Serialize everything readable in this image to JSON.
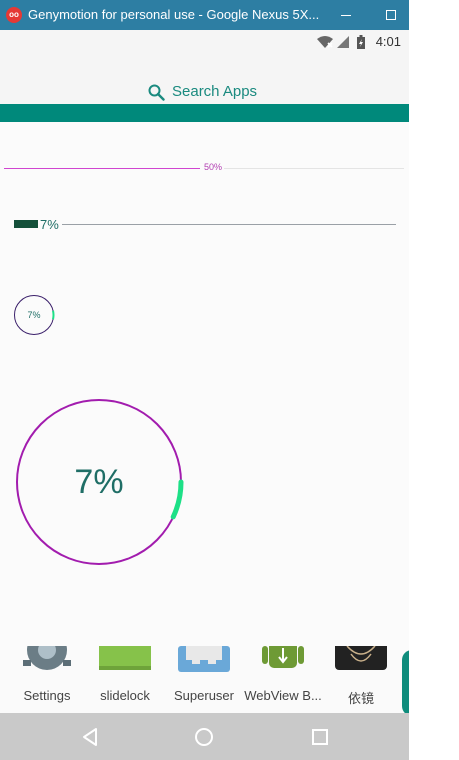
{
  "window": {
    "title": "Genymotion for personal use - Google Nexus 5X...",
    "app_icon_text": "oo"
  },
  "status_bar": {
    "time": "4:01"
  },
  "search": {
    "label": "Search Apps"
  },
  "progress": {
    "top_bar_label": "50%",
    "top_bar_value": 50,
    "bar_label": "7%",
    "bar_value": 7,
    "small_ring_label": "7%",
    "big_ring_label": "7%",
    "ring_value": 7
  },
  "dock": {
    "apps": [
      {
        "label": "Settings",
        "icon": "settings-icon"
      },
      {
        "label": "slidelock",
        "icon": "slidelock-icon"
      },
      {
        "label": "Superuser",
        "icon": "superuser-icon"
      },
      {
        "label": "WebView B...",
        "icon": "webview-icon"
      },
      {
        "label": "依镜",
        "icon": "yijing-icon"
      }
    ]
  },
  "colors": {
    "teal": "#00897b",
    "ring": "#a21cae",
    "ring_progress": "#1de087",
    "text_teal": "#1f6e66"
  }
}
